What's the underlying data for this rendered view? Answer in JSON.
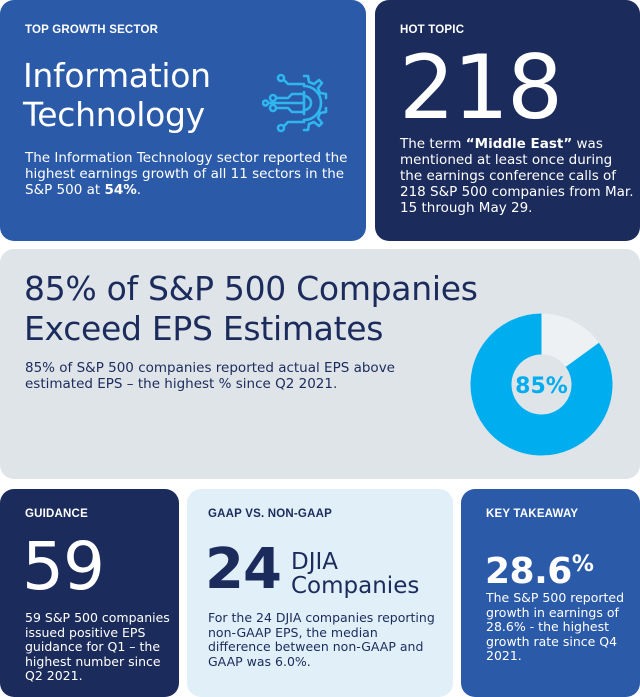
{
  "top_growth": {
    "label": "TOP GROWTH SECTOR",
    "title_line1": "Information",
    "title_line2": "Technology",
    "body_pre": "The Information Technology sector reported the highest earnings growth of all 11 sectors in the S&P 500 at ",
    "body_bold": "54%",
    "body_post": ".",
    "icon": "circuit-gear-icon"
  },
  "hot_topic": {
    "label": "HOT TOPIC",
    "number": "218",
    "body_pre": "The term ",
    "body_bold": "“Middle East”",
    "body_post": " was mentioned at least once during the earnings conference calls of 218 S&P 500 companies from Mar. 15 through May 29."
  },
  "eps": {
    "headline_line1": "85% of S&P 500 Companies",
    "headline_line2": "Exceed EPS Estimates",
    "body": "85% of S&P 500 companies reported actual EPS above estimated EPS – the highest % since Q2 2021.",
    "donut_value": 85,
    "donut_label": "85%"
  },
  "guidance": {
    "label": "GUIDANCE",
    "number": "59",
    "body": "59 S&P 500 companies issued positive EPS guidance for Q1 – the highest number since Q2 2021."
  },
  "gaap": {
    "label": "GAAP VS. NON-GAAP",
    "number": "24",
    "sub_line1": "DJIA",
    "sub_line2": "Companies",
    "body": "For the 24 DJIA companies reporting non-GAAP EPS, the median difference between non-GAAP and GAAP was 6.0%."
  },
  "takeaway": {
    "label": "KEY TAKEAWAY",
    "number": "28.6",
    "number_suffix": "%",
    "body": "The S&P 500 reported growth in earnings of 28.6% - the highest growth rate since Q4 2021."
  },
  "colors": {
    "royal_blue": "#2b5aa9",
    "navy": "#1b2b5c",
    "light_gray": "#dfe4e9",
    "light_blue": "#e1eff8",
    "cyan_accent": "#00aeef",
    "donut_track": "#eef1f4"
  }
}
